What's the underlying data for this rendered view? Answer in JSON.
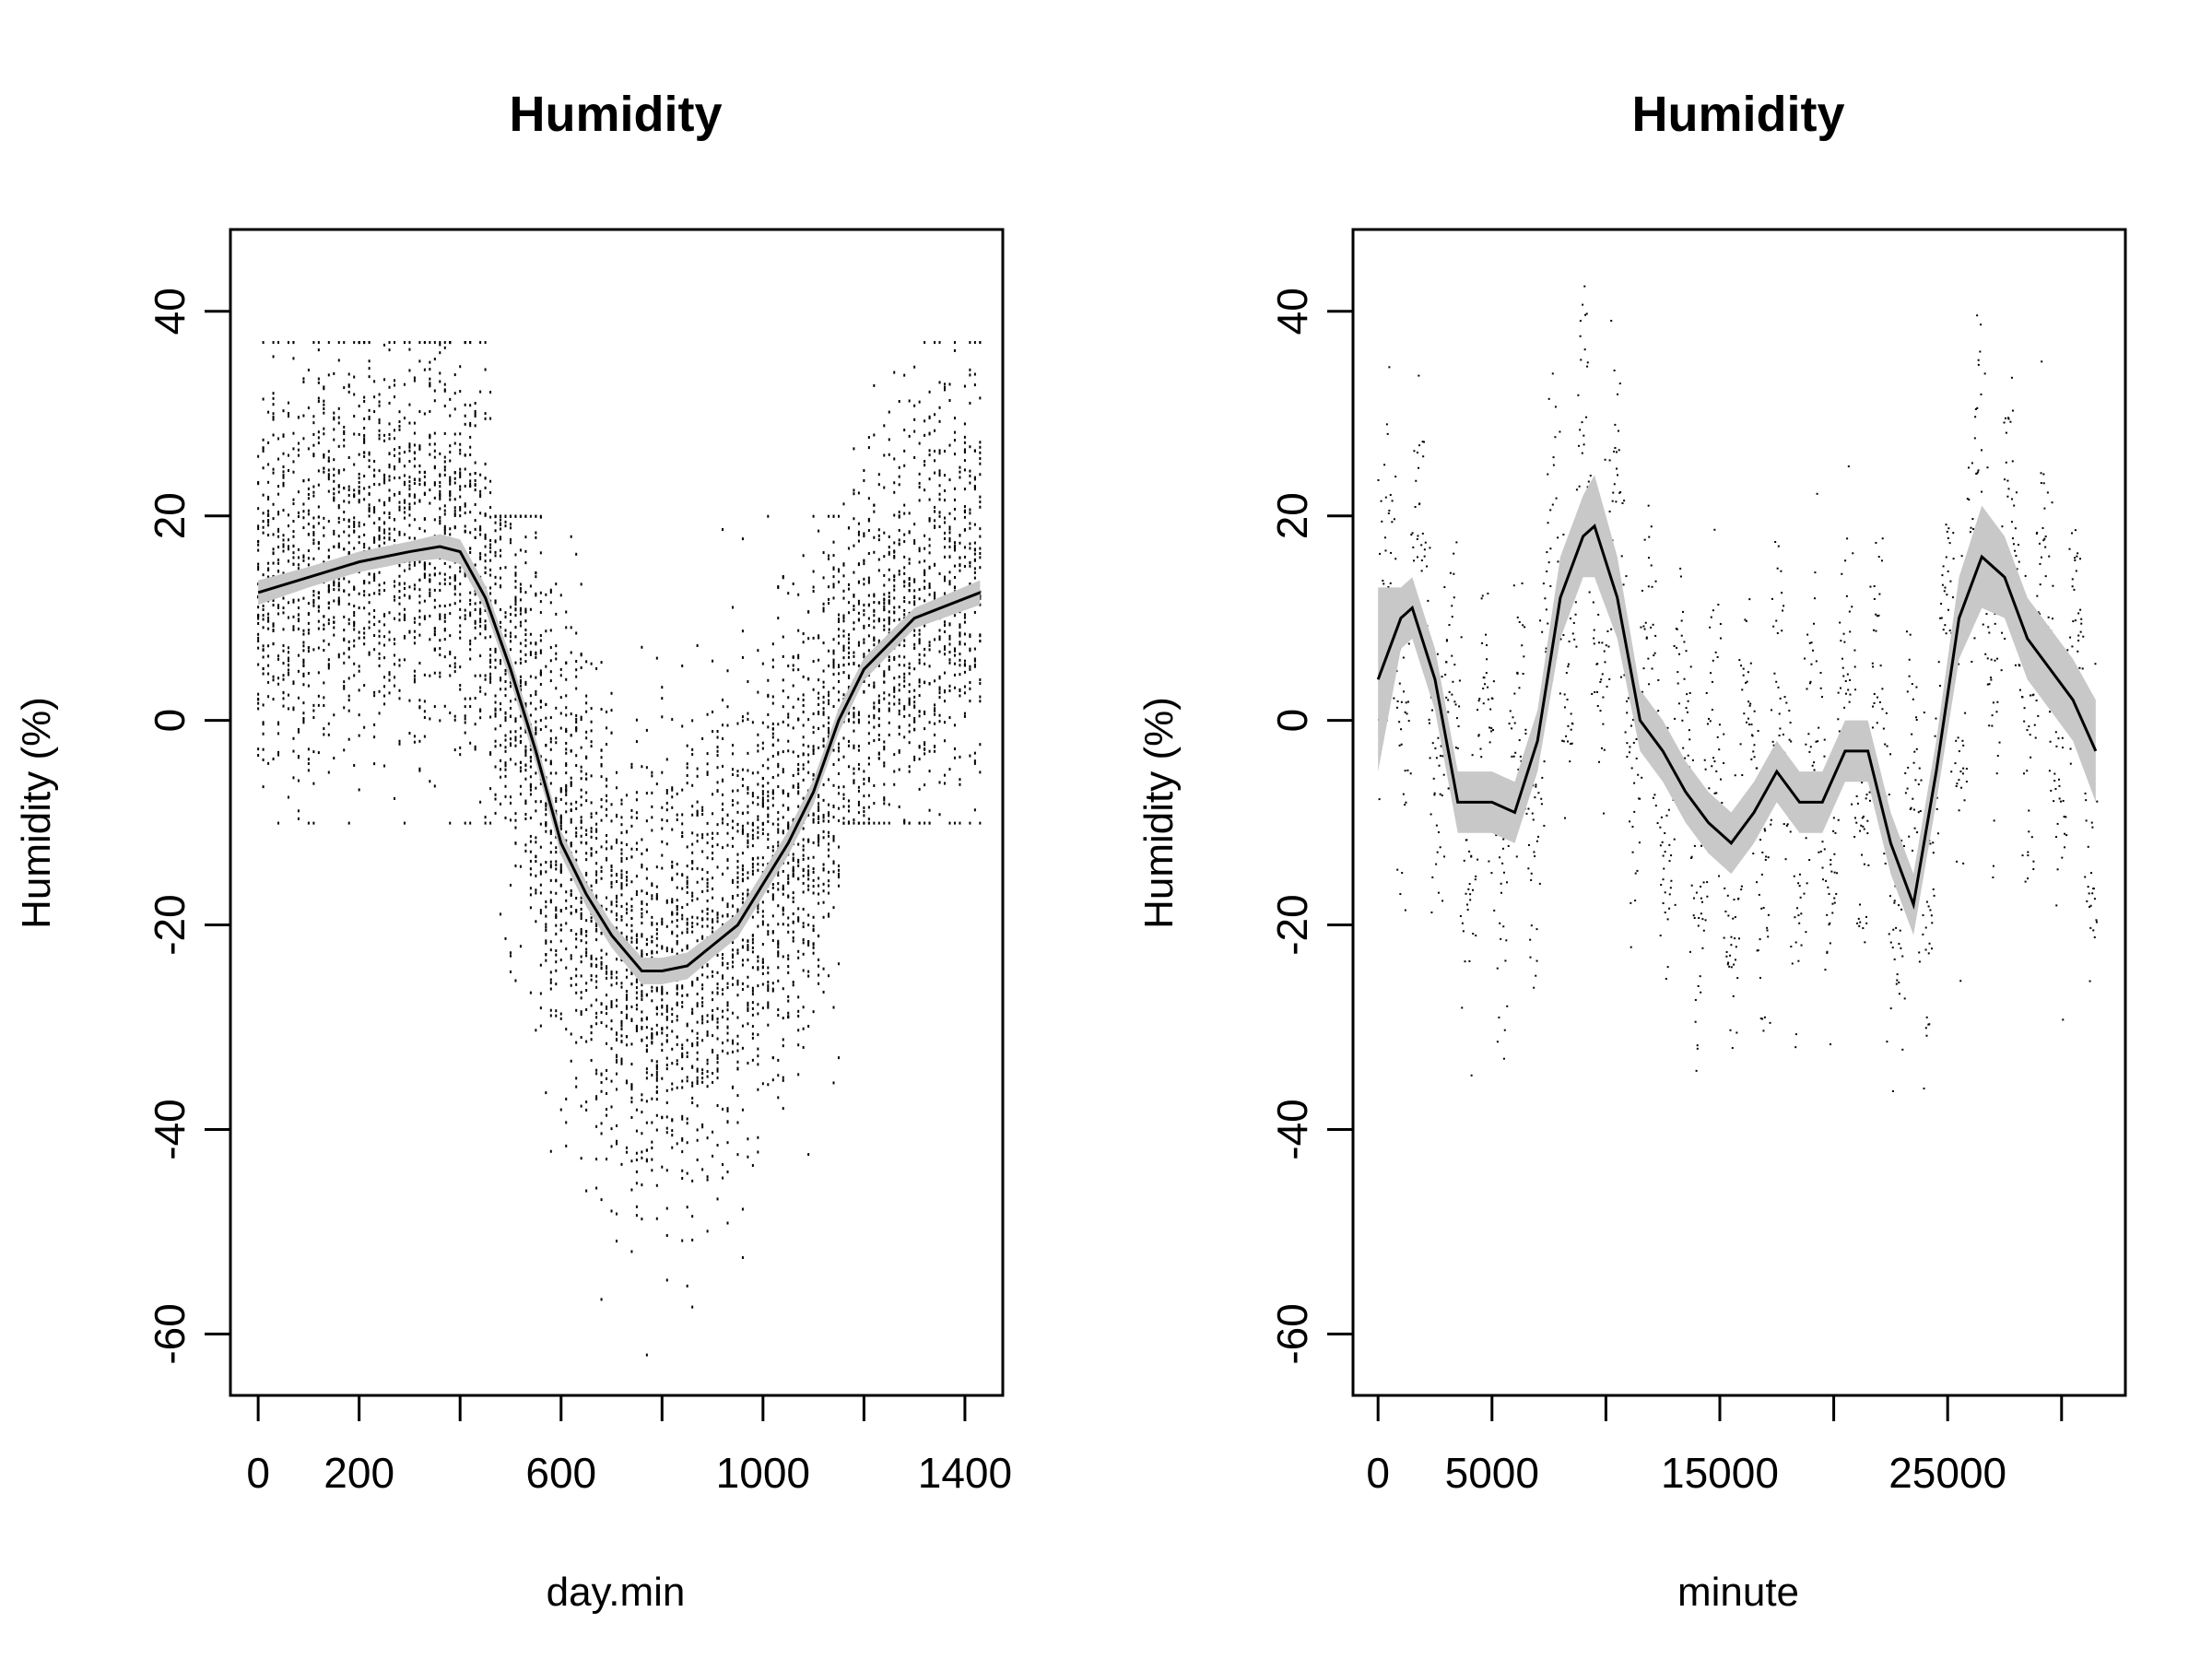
{
  "chart_data": [
    {
      "type": "scatter",
      "title": "Humidity",
      "xlabel": "day.min",
      "ylabel": "Humidity (%)",
      "xlim": [
        -55,
        1475
      ],
      "ylim": [
        -66,
        48
      ],
      "xticks": [
        0,
        200,
        400,
        600,
        800,
        1000,
        1200,
        1400
      ],
      "xtick_labels": [
        "0",
        "200",
        "",
        "600",
        "",
        "1000",
        "",
        "1400"
      ],
      "yticks": [
        40,
        20,
        0,
        -20,
        -40,
        -60
      ],
      "ytick_labels": [
        "40",
        "20",
        "0",
        "-20",
        "-40",
        "-60"
      ],
      "points_description": "dense scatter of per-minute humidity readings; high (0 to 30) at night, dropping to -20 to -60 around midday",
      "smooth": {
        "x": [
          0,
          100,
          200,
          300,
          360,
          400,
          450,
          500,
          550,
          600,
          650,
          700,
          760,
          800,
          850,
          900,
          950,
          1000,
          1050,
          1100,
          1150,
          1200,
          1300,
          1430
        ],
        "y": [
          12.5,
          14,
          15.5,
          16.5,
          17,
          16.5,
          12,
          5,
          -3,
          -12,
          -17,
          -21,
          -24.5,
          -24.5,
          -24,
          -22,
          -20,
          -16,
          -12,
          -7,
          0,
          5,
          10,
          12.5
        ],
        "band_halfwidth": [
          1.2,
          1.0,
          1.0,
          1.0,
          1.2,
          1.2,
          1.2,
          1.2,
          1.2,
          1.2,
          1.2,
          1.2,
          1.3,
          1.3,
          1.3,
          1.2,
          1.2,
          1.2,
          1.2,
          1.2,
          1.2,
          1.1,
          1.0,
          1.2
        ]
      }
    },
    {
      "type": "scatter",
      "title": "Humidity",
      "xlabel": "minute",
      "ylabel": "Humidity (%)",
      "xlim": [
        -1100,
        32800
      ],
      "ylim": [
        -66,
        48
      ],
      "xticks": [
        0,
        5000,
        10000,
        15000,
        20000,
        25000,
        30000
      ],
      "xtick_labels": [
        "0",
        "5000",
        "",
        "15000",
        "",
        "25000",
        ""
      ],
      "yticks": [
        40,
        20,
        0,
        -20,
        -40,
        -60
      ],
      "ytick_labels": [
        "40",
        "20",
        "0",
        "-20",
        "-40",
        "-60"
      ],
      "points_description": "time series of humidity readings over ~30000 minutes with daily oscillations",
      "smooth": {
        "x": [
          0,
          1000,
          1500,
          2500,
          3500,
          5000,
          6000,
          7000,
          8000,
          9000,
          9500,
          10500,
          11500,
          12500,
          13500,
          14500,
          15500,
          16500,
          17500,
          18500,
          19500,
          20500,
          21500,
          22500,
          23500,
          24500,
          25500,
          26500,
          27500,
          28500,
          29500,
          30500,
          31500
        ],
        "y": [
          4,
          10,
          11,
          4,
          -8,
          -8,
          -9,
          -2,
          12,
          18,
          19,
          12,
          0,
          -3,
          -7,
          -10,
          -12,
          -9,
          -5,
          -8,
          -8,
          -3,
          -3,
          -12,
          -18,
          -5,
          10,
          16,
          14,
          8,
          5,
          2,
          -3
        ],
        "band_halfwidth": [
          9,
          3,
          3,
          3,
          3,
          3,
          3,
          3,
          4,
          4,
          5,
          4,
          3,
          3,
          3,
          3,
          3,
          3,
          3,
          3,
          3,
          3,
          3,
          3,
          3,
          3,
          4,
          5,
          4,
          4,
          4,
          4,
          5
        ]
      }
    }
  ]
}
